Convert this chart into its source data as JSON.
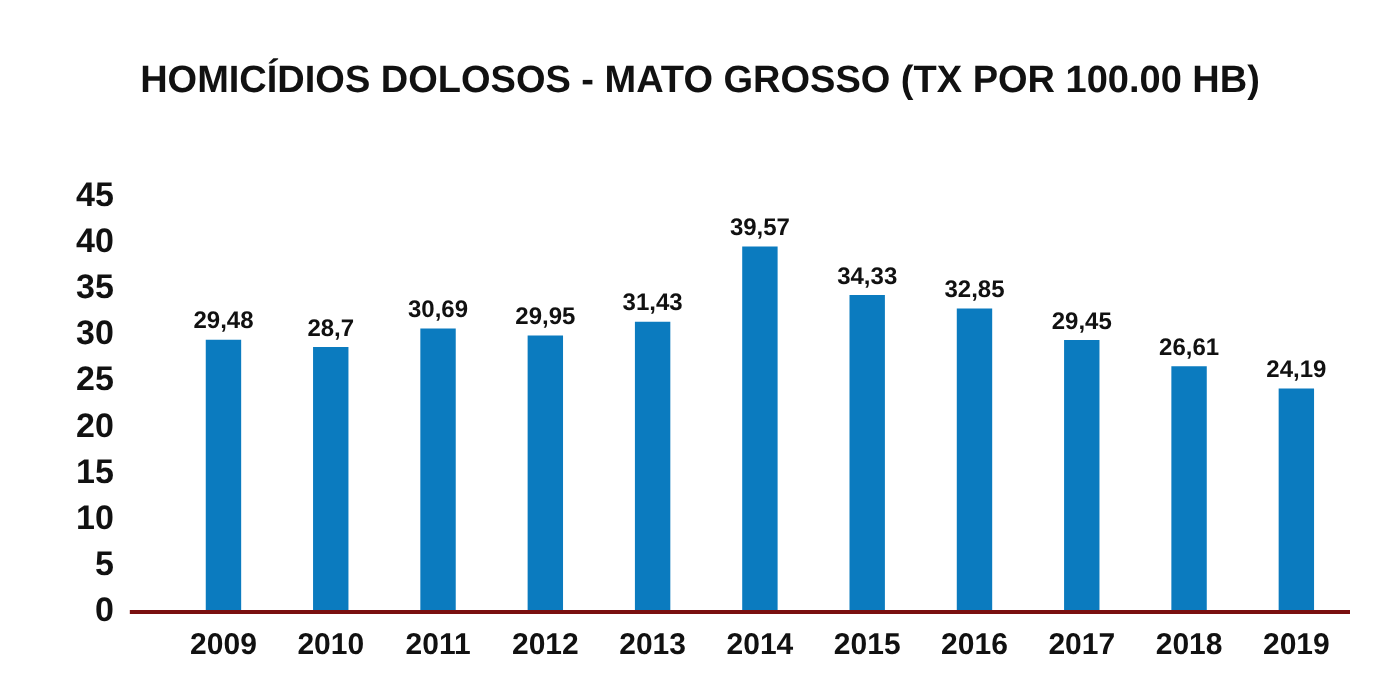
{
  "chart_data": {
    "type": "bar",
    "title": "HOMICÍDIOS DOLOSOS - MATO GROSSO (TX POR 100.00 HB)",
    "categories": [
      "2009",
      "2010",
      "2011",
      "2012",
      "2013",
      "2014",
      "2015",
      "2016",
      "2017",
      "2018",
      "2019"
    ],
    "values": [
      29.48,
      28.7,
      30.69,
      29.95,
      31.43,
      39.57,
      34.33,
      32.85,
      29.45,
      26.61,
      24.19
    ],
    "value_labels": [
      "29,48",
      "28,7",
      "30,69",
      "29,95",
      "31,43",
      "39,57",
      "34,33",
      "32,85",
      "29,45",
      "26,61",
      "24,19"
    ],
    "color": "#0b7bbf",
    "ylim": [
      0,
      45
    ],
    "yticks": [
      0,
      5,
      10,
      15,
      20,
      25,
      30,
      35,
      40,
      45
    ],
    "grid": false,
    "legend": false
  }
}
